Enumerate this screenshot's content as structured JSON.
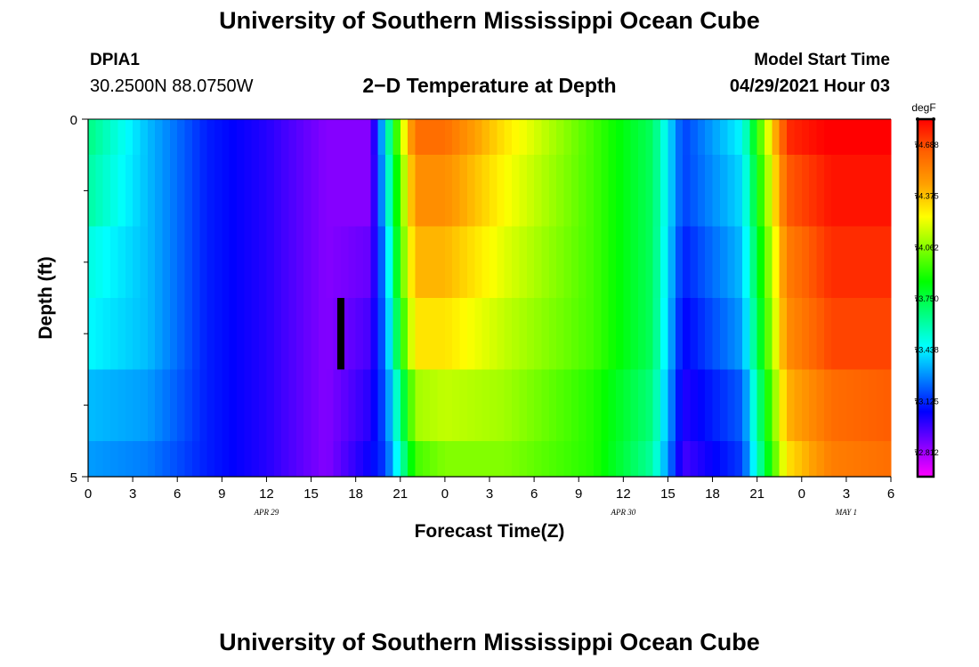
{
  "header": {
    "title": "University of Southern Mississippi Ocean Cube",
    "station_id": "DPIA1",
    "location": "30.2500N  88.0750W",
    "plot_title": "2−D Temperature at Depth",
    "model_start_label": "Model Start Time",
    "model_start_value": "04/29/2021 Hour 03"
  },
  "footer": {
    "title": "University of Southern Mississippi Ocean Cube"
  },
  "chart_data": {
    "type": "heatmap",
    "title": "2−D Temperature at Depth",
    "xlabel": "Forecast Time(Z)",
    "ylabel": "Depth (ft)",
    "units": "degF",
    "x_hours_from_apr29_00z": [
      0,
      3,
      6,
      9,
      12,
      15,
      18,
      21,
      24,
      27,
      30,
      33,
      36,
      39,
      42,
      45,
      48,
      51,
      54
    ],
    "x_tick_labels": [
      "0",
      "3",
      "6",
      "9",
      "12",
      "15",
      "18",
      "21",
      "0",
      "3",
      "6",
      "9",
      "12",
      "15",
      "18",
      "21",
      "0",
      "3",
      "6"
    ],
    "date_labels": [
      {
        "text": "APR 29",
        "hour": 12
      },
      {
        "text": "APR 30",
        "hour": 36
      },
      {
        "text": "MAY 1",
        "hour": 51
      }
    ],
    "y_range": [
      0,
      5
    ],
    "y_tick_labels": [
      "0",
      "5"
    ],
    "y_minor_ticks": [
      1,
      2,
      3,
      4
    ],
    "depth_levels_ft": [
      0,
      0.5,
      1.5,
      2.5,
      3.5,
      4.5,
      5
    ],
    "time_samples_hours": [
      0,
      4,
      8,
      12,
      16,
      19,
      20,
      21,
      22,
      24,
      28,
      34,
      38,
      40,
      44,
      47,
      50,
      54
    ],
    "temperature_degF": [
      [
        73.65,
        73.35,
        73.1,
        73.0,
        72.85,
        72.85,
        73.45,
        74.1,
        74.6,
        74.6,
        74.3,
        73.95,
        73.7,
        73.15,
        73.45,
        74.75,
        74.85,
        74.85
      ],
      [
        73.6,
        73.35,
        73.1,
        73.0,
        72.85,
        72.85,
        73.4,
        74.0,
        74.5,
        74.5,
        74.25,
        73.95,
        73.7,
        73.15,
        73.4,
        74.65,
        74.8,
        74.8
      ],
      [
        73.5,
        73.35,
        73.1,
        73.0,
        72.85,
        72.9,
        73.3,
        73.95,
        74.4,
        74.4,
        74.2,
        73.95,
        73.7,
        73.1,
        73.35,
        74.55,
        74.75,
        74.75
      ],
      [
        73.45,
        73.35,
        73.1,
        73.0,
        72.85,
        72.95,
        73.25,
        73.85,
        74.3,
        74.3,
        74.15,
        73.95,
        73.7,
        73.05,
        73.3,
        74.5,
        74.7,
        74.7
      ],
      [
        73.35,
        73.3,
        73.1,
        73.0,
        72.85,
        73.0,
        73.2,
        73.65,
        74.1,
        74.15,
        74.1,
        73.9,
        73.65,
        73.0,
        73.2,
        74.4,
        74.6,
        74.65
      ],
      [
        73.3,
        73.25,
        73.1,
        73.0,
        72.85,
        73.05,
        73.15,
        73.55,
        73.95,
        74.05,
        74.05,
        73.9,
        73.6,
        72.95,
        73.15,
        74.3,
        74.55,
        74.6
      ],
      [
        73.3,
        73.25,
        73.1,
        73.0,
        72.85,
        73.05,
        73.15,
        73.55,
        73.95,
        74.05,
        74.05,
        73.9,
        73.6,
        72.95,
        73.15,
        74.3,
        74.55,
        74.6
      ]
    ],
    "current_time_marker": {
      "hour": 17,
      "depth_from": 2.5,
      "depth_to": 3.5
    },
    "colorbar": {
      "title": "degF",
      "range": [
        72.66,
        74.84
      ],
      "tick_values": [
        74.688,
        74.375,
        74.062,
        73.75,
        73.438,
        73.125,
        72.812
      ],
      "tick_labels": [
        "74.688",
        "74.375",
        "74.062",
        "73.750",
        "73.438",
        "73.125",
        "72.812"
      ],
      "colors_low_to_high": [
        "#ff00ff",
        "#8000ff",
        "#0000ff",
        "#0080ff",
        "#00ffff",
        "#00ff80",
        "#00ff00",
        "#80ff00",
        "#ffff00",
        "#ffa000",
        "#ff6000",
        "#ff0000"
      ]
    }
  }
}
